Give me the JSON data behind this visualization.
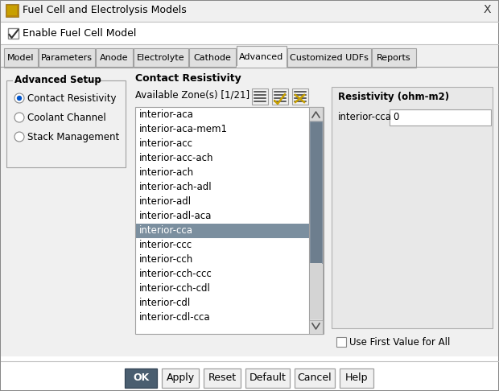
{
  "title": "Fuel Cell and Electrolysis Models",
  "bg_color": "#f0f0f0",
  "dialog_bg": "#ffffff",
  "tabs": [
    "Model",
    "Parameters",
    "Anode",
    "Electrolyte",
    "Cathode",
    "Advanced",
    "Customized UDFs",
    "Reports"
  ],
  "active_tab": "Advanced",
  "checkbox_label": "Enable Fuel Cell Model",
  "checkbox_checked": true,
  "advanced_setup_label": "Advanced Setup",
  "radio_options": [
    "Contact Resistivity",
    "Coolant Channel",
    "Stack Management"
  ],
  "active_radio": 0,
  "contact_resistivity_label": "Contact Resistivity",
  "available_zones_label": "Available Zone(s) [1/21]",
  "zones": [
    "interior-aca",
    "interior-aca-mem1",
    "interior-acc",
    "interior-acc-ach",
    "interior-ach",
    "interior-ach-adl",
    "interior-adl",
    "interior-adl-aca",
    "interior-cca",
    "interior-ccc",
    "interior-cch",
    "interior-cch-ccc",
    "interior-cch-cdl",
    "interior-cdl",
    "interior-cdl-cca"
  ],
  "selected_zone": "interior-cca",
  "selected_zone_index": 8,
  "resistivity_label": "Resistivity (ohm-m2)",
  "resistivity_field_label": "interior-cca",
  "resistivity_value": "0",
  "use_first_value_label": "Use First Value for All",
  "buttons": [
    "OK",
    "Apply",
    "Reset",
    "Default",
    "Cancel",
    "Help"
  ],
  "selected_row_color": "#7b8f9f",
  "scrollbar_thumb_color": "#6d7e8e",
  "scrollbar_track_color": "#d4d4d4",
  "dark_btn_color": "#4a5e70",
  "dark_btn_text": "#ffffff",
  "icon_check_color": "#c8a000",
  "icon_x_color": "#c8a000",
  "tab_active_bg": "#f0f0f0",
  "tab_inactive_bg": "#e0e0e0",
  "border_color": "#a0a0a0",
  "light_border": "#c8c8c8",
  "panel_bg": "#f0f0f0",
  "res_panel_bg": "#e8e8e8"
}
